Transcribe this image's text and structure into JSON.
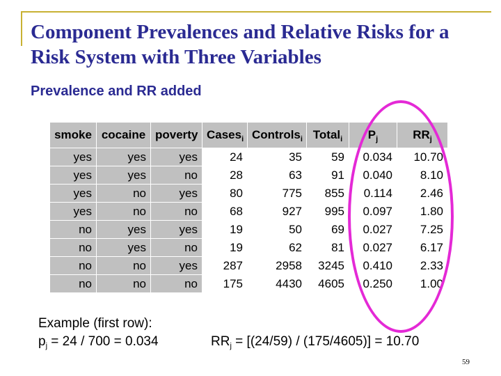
{
  "slide": {
    "title": "Component Prevalences and Relative Risks for a Risk System with Three Variables",
    "subtitle": "Prevalence and RR added",
    "page_number": "59"
  },
  "table": {
    "headers": [
      {
        "text": "smoke",
        "sub": ""
      },
      {
        "text": "cocaine",
        "sub": ""
      },
      {
        "text": "poverty",
        "sub": ""
      },
      {
        "text": "Cases",
        "sub": "i"
      },
      {
        "text": "Controls",
        "sub": "i"
      },
      {
        "text": "Total",
        "sub": "i"
      },
      {
        "text": "P",
        "sub": "j"
      },
      {
        "text": "RR",
        "sub": "j"
      }
    ],
    "rows": [
      [
        "yes",
        "yes",
        "yes",
        "24",
        "35",
        "59",
        "0.034",
        "10.70"
      ],
      [
        "yes",
        "yes",
        "no",
        "28",
        "63",
        "91",
        "0.040",
        "8.10"
      ],
      [
        "yes",
        "no",
        "yes",
        "80",
        "775",
        "855",
        "0.114",
        "2.46"
      ],
      [
        "yes",
        "no",
        "no",
        "68",
        "927",
        "995",
        "0.097",
        "1.80"
      ],
      [
        "no",
        "yes",
        "yes",
        "19",
        "50",
        "69",
        "0.027",
        "7.25"
      ],
      [
        "no",
        "yes",
        "no",
        "19",
        "62",
        "81",
        "0.027",
        "6.17"
      ],
      [
        "no",
        "no",
        "yes",
        "287",
        "2958",
        "3245",
        "0.410",
        "2.33"
      ],
      [
        "no",
        "no",
        "no",
        "175",
        "4430",
        "4605",
        "0.250",
        "1.00"
      ]
    ]
  },
  "example": {
    "heading": "Example (first row):",
    "p_symbol": "p",
    "p_sub": "j",
    "p_formula": " = 24 / 700 = 0.034",
    "rr_symbol": "RR",
    "rr_sub": "j",
    "rr_formula": " = [(24/59) / (175/4605)] = 10.70"
  },
  "colors": {
    "title": "#2a2a92",
    "frame": "#c8b133",
    "highlight_ellipse": "#e429d6",
    "table_gray": "#c0c0c0"
  }
}
